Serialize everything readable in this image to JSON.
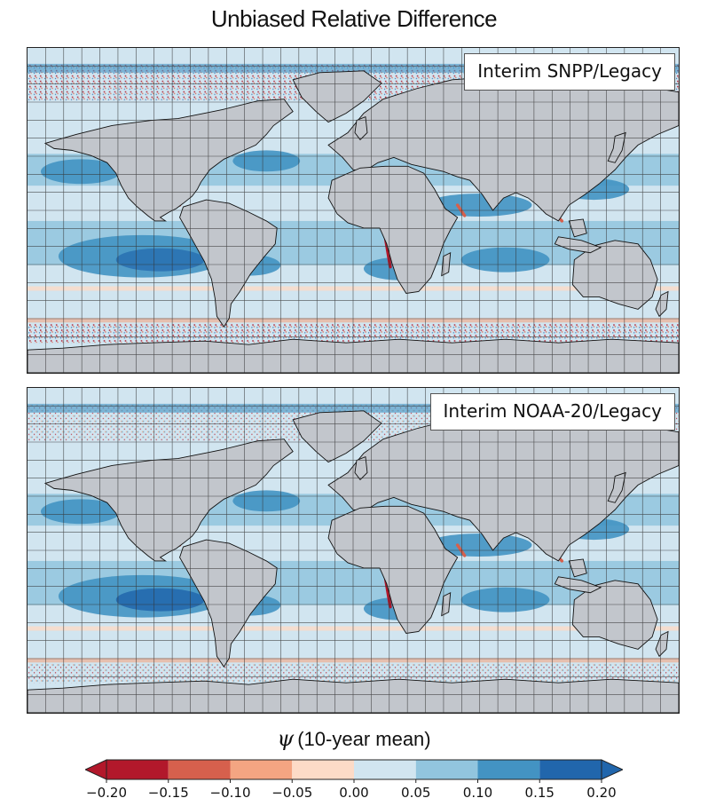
{
  "figure": {
    "title": "Unbiased Relative Difference"
  },
  "panels": [
    {
      "label": "Interim SNPP/Legacy"
    },
    {
      "label": "Interim NOAA-20/Legacy"
    }
  ],
  "colorbar": {
    "symbol": "ψ",
    "title": "(10-year mean)",
    "ticks": [
      "−0.20",
      "−0.15",
      "−0.10",
      "−0.05",
      "0.00",
      "0.05",
      "0.10",
      "0.15",
      "0.20"
    ],
    "colors": [
      "#b2182b",
      "#d6604d",
      "#f4a582",
      "#fddbc7",
      "#d1e5f0",
      "#92c5de",
      "#4393c3",
      "#2166ac"
    ],
    "under_color": "#b2182b",
    "over_color": "#2166ac"
  },
  "map_colors": {
    "land": "#c2c6cc",
    "ocean_base": "#d1e5f0"
  }
}
